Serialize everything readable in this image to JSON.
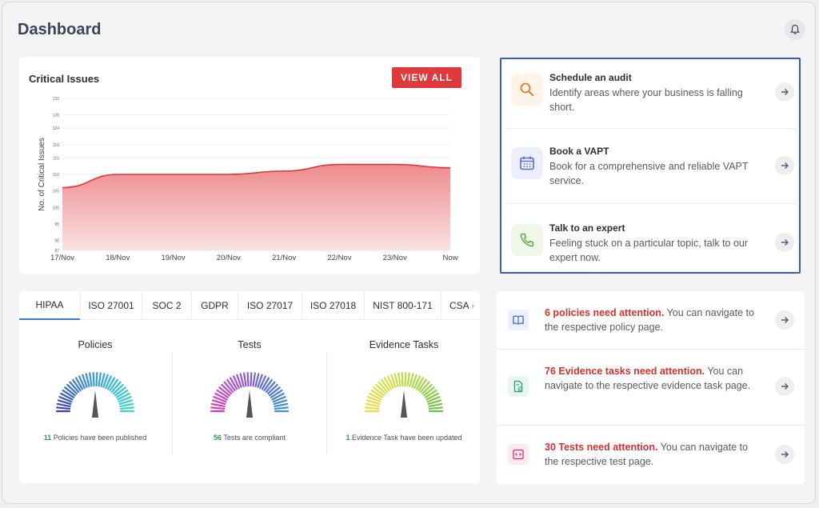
{
  "header": {
    "title": "Dashboard",
    "bell_icon": "bell-icon"
  },
  "chart": {
    "title": "Critical Issues",
    "button_label": "VIEW ALL",
    "colors": {
      "line": "#e0393c",
      "fill_top": "#ee8a8c",
      "fill_bottom": "#fbe3e3",
      "button": "#e0393c"
    }
  },
  "chart_data": {
    "type": "area",
    "title": "Critical Issues",
    "ylabel": "No. of Critical Issues",
    "xlabel": "",
    "categories": [
      "17/Nov",
      "18/Nov",
      "19/Nov",
      "20/Nov",
      "21/Nov",
      "22/Nov",
      "23/Nov",
      "Now"
    ],
    "values": [
      106,
      110,
      110,
      110,
      111,
      113,
      113,
      112
    ],
    "y_ticks": [
      87,
      90,
      95,
      100,
      105,
      110,
      115,
      119,
      124,
      128,
      133
    ],
    "ylim": [
      87,
      133
    ],
    "grid": true
  },
  "actions": [
    {
      "title": "Schedule an audit",
      "desc": "Identify areas where your business is falling short.",
      "icon": "magnifier-icon",
      "icon_color": "#e07a2e",
      "icon_bg": "#fff4e8"
    },
    {
      "title": "Book a VAPT",
      "desc": "Book for a comprehensive and reliable VAPT service.",
      "icon": "calendar-icon",
      "icon_color": "#5a6fd6",
      "icon_bg": "#eceffd"
    },
    {
      "title": "Talk to an expert",
      "desc": "Feeling stuck on a particular topic, talk to our expert now.",
      "icon": "phone-icon",
      "icon_color": "#6bb04a",
      "icon_bg": "#eef7e8"
    }
  ],
  "frameworks": {
    "tabs": [
      "HIPAA",
      "ISO 27001",
      "SOC 2",
      "GDPR",
      "ISO 27017",
      "ISO 27018",
      "NIST 800-171",
      "CSA"
    ],
    "active_tab": "HIPAA",
    "gauges": [
      {
        "label": "Policies",
        "count": "11",
        "caption": "Policies have been published",
        "palette": [
          "#3a3fb0",
          "#3f7fd6",
          "#33b8d8",
          "#3fd6c8"
        ]
      },
      {
        "label": "Tests",
        "count": "56",
        "caption": "Tests are compliant",
        "palette": [
          "#d63fb0",
          "#b04fd6",
          "#5a6fd6",
          "#3f8fd6"
        ]
      },
      {
        "label": "Evidence Tasks",
        "count": "1",
        "caption": "Evidence Task have been updated",
        "palette": [
          "#f0d84a",
          "#d6e04a",
          "#a8d64a",
          "#6bc24a"
        ]
      }
    ]
  },
  "attention": [
    {
      "highlight": "6 policies need attention.",
      "rest": "You can navigate to the respective policy page.",
      "icon": "book-icon",
      "icon_color": "#5a6fd6",
      "icon_bg": "#eceffd"
    },
    {
      "highlight": "76 Evidence tasks need attention.",
      "rest": "You can navigate to the respective evidence task page.",
      "icon": "file-check-icon",
      "icon_color": "#2e9b7b",
      "icon_bg": "#e6f6f0"
    },
    {
      "highlight": "30 Tests need attention.",
      "rest": "You can navigate to the respective test page.",
      "icon": "code-window-icon",
      "icon_color": "#d6336c",
      "icon_bg": "#fde9ef"
    }
  ]
}
